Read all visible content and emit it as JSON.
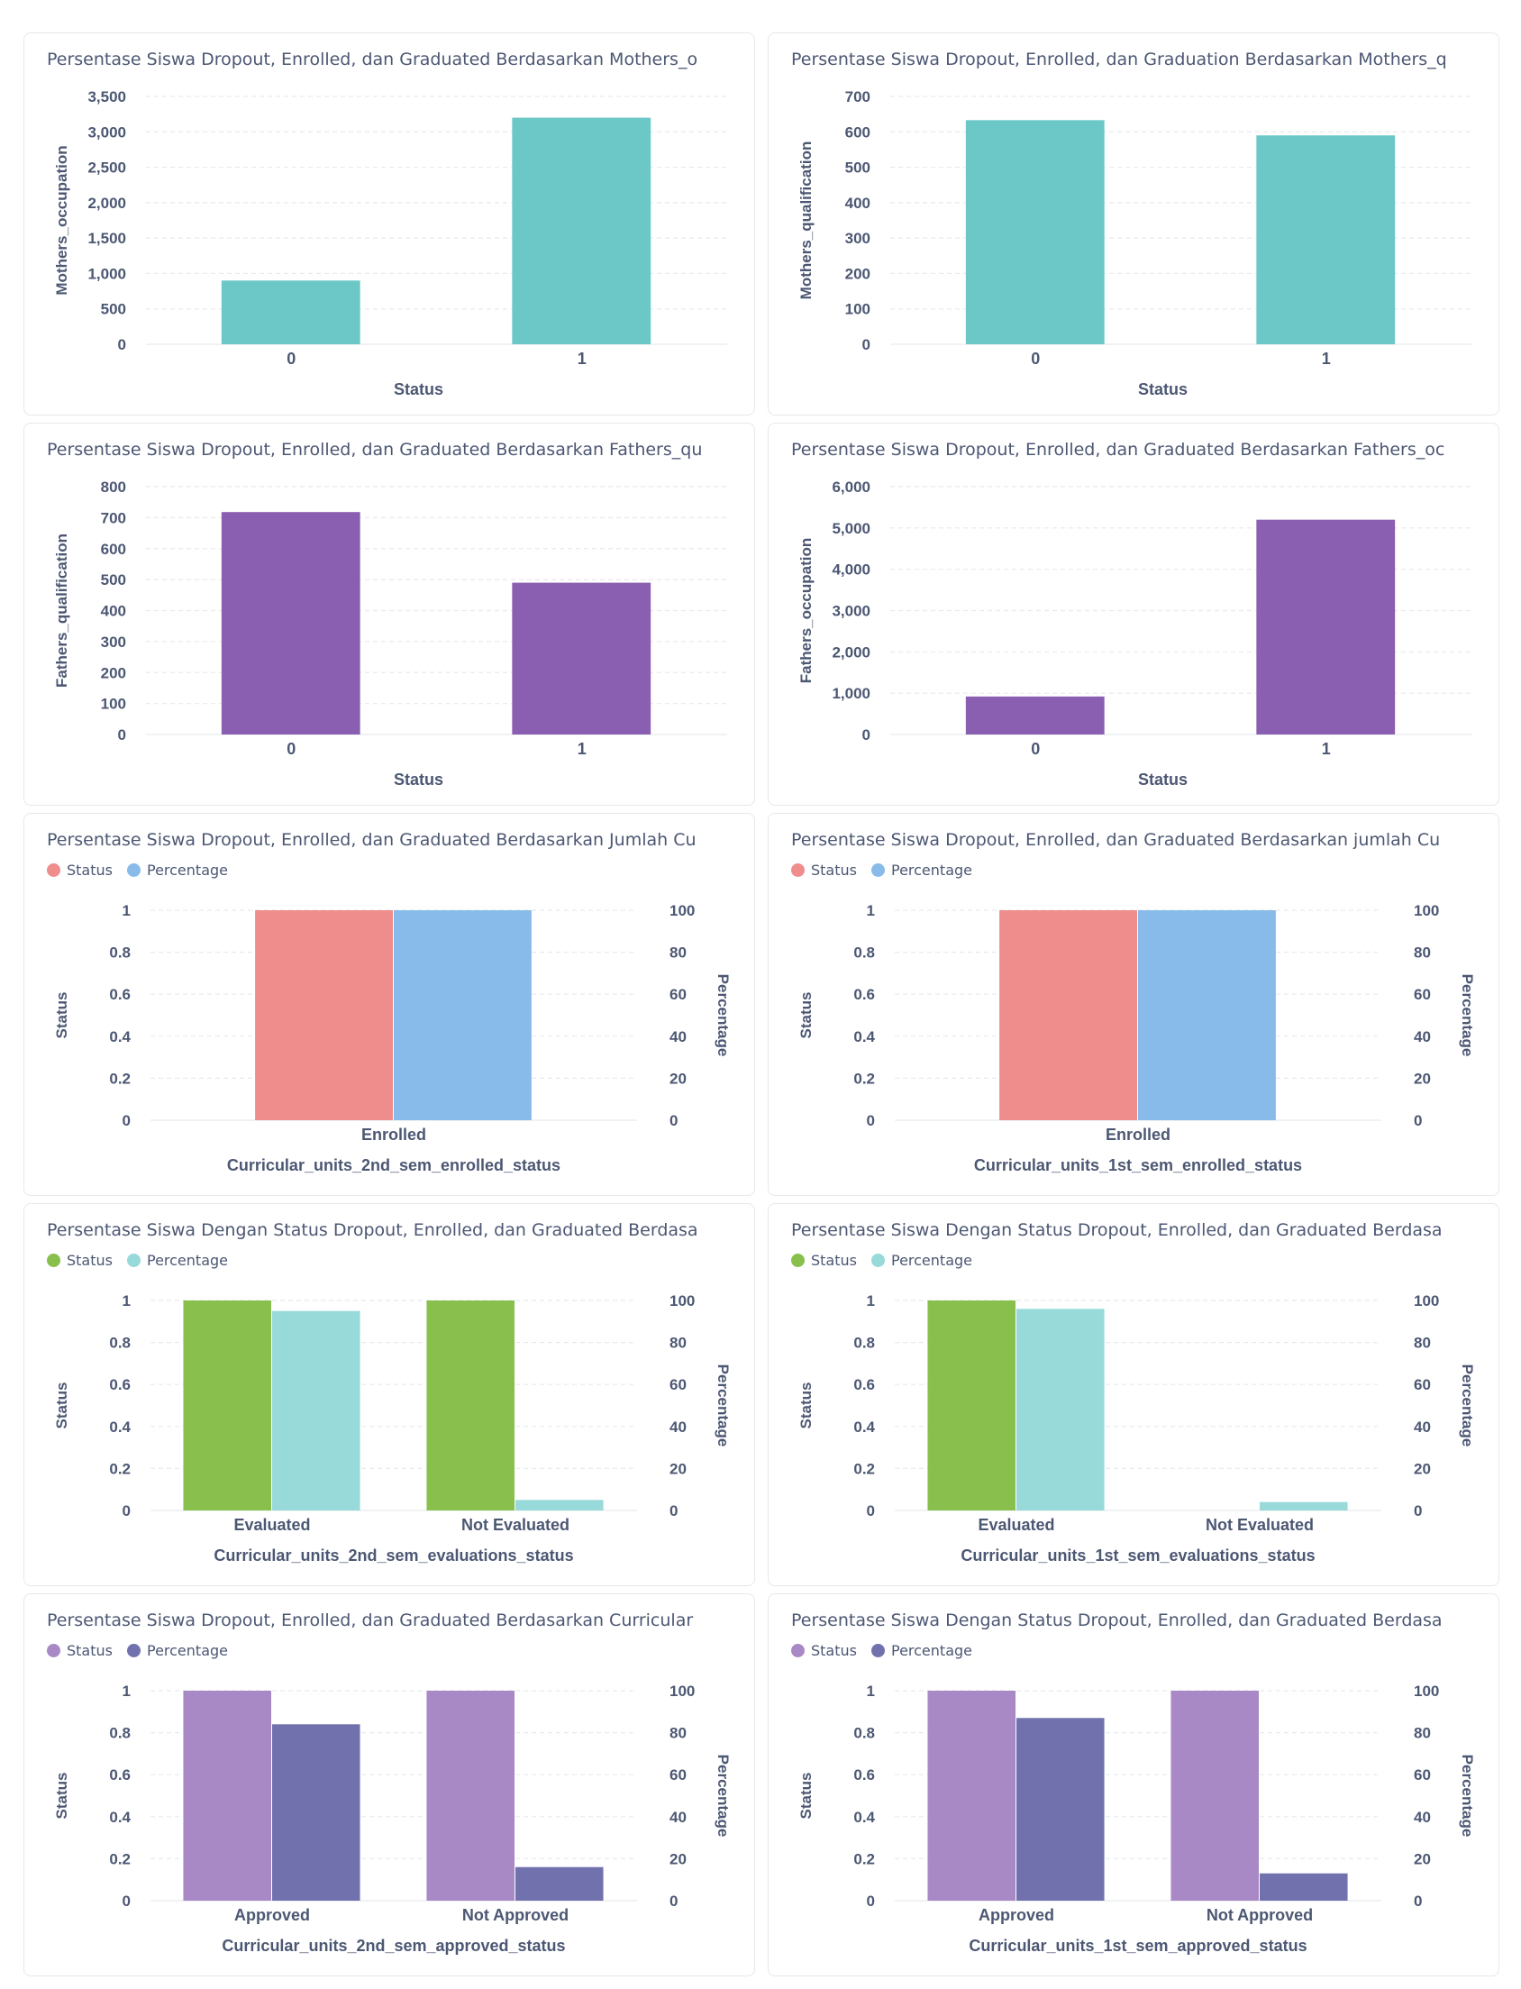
{
  "chart_data": [
    {
      "type": "bar",
      "title": "Persentase Siswa Dropout, Enrolled, dan Graduated Berdasarkan Mothers_o",
      "xlabel": "Status",
      "ylabel": "Mothers_occupation",
      "categories": [
        "0",
        "1"
      ],
      "series": [
        {
          "values": [
            900,
            3200
          ]
        }
      ],
      "colors": [
        "#6cc8c7"
      ],
      "ylim": [
        0,
        3500
      ],
      "yticks": [
        0,
        500,
        1000,
        1500,
        2000,
        2500,
        3000,
        3500
      ],
      "ytick_labels": [
        "0",
        "500",
        "1,000",
        "1,500",
        "2,000",
        "2,500",
        "3,000",
        "3,500"
      ],
      "grid": true
    },
    {
      "type": "bar",
      "title": "Persentase Siswa Dropout, Enrolled, dan Graduation Berdasarkan Mothers_q",
      "xlabel": "Status",
      "ylabel": "Mothers_qualification",
      "categories": [
        "0",
        "1"
      ],
      "series": [
        {
          "values": [
            633,
            590
          ]
        }
      ],
      "colors": [
        "#6cc8c7"
      ],
      "ylim": [
        0,
        700
      ],
      "yticks": [
        0,
        100,
        200,
        300,
        400,
        500,
        600,
        700
      ],
      "ytick_labels": [
        "0",
        "100",
        "200",
        "300",
        "400",
        "500",
        "600",
        "700"
      ],
      "grid": true
    },
    {
      "type": "bar",
      "title": "Persentase Siswa Dropout, Enrolled, dan Graduated Berdasarkan Fathers_qu",
      "xlabel": "Status",
      "ylabel": "Fathers_qualification",
      "categories": [
        "0",
        "1"
      ],
      "series": [
        {
          "values": [
            718,
            490
          ]
        }
      ],
      "colors": [
        "#8a5eb0"
      ],
      "ylim": [
        0,
        800
      ],
      "yticks": [
        0,
        100,
        200,
        300,
        400,
        500,
        600,
        700,
        800
      ],
      "ytick_labels": [
        "0",
        "100",
        "200",
        "300",
        "400",
        "500",
        "600",
        "700",
        "800"
      ],
      "grid": true
    },
    {
      "type": "bar",
      "title": "Persentase Siswa Dropout, Enrolled, dan Graduated Berdasarkan Fathers_oc",
      "xlabel": "Status",
      "ylabel": "Fathers_occupation",
      "categories": [
        "0",
        "1"
      ],
      "series": [
        {
          "values": [
            920,
            5200
          ]
        }
      ],
      "colors": [
        "#8a5eb0"
      ],
      "ylim": [
        0,
        6000
      ],
      "yticks": [
        0,
        1000,
        2000,
        3000,
        4000,
        5000,
        6000
      ],
      "ytick_labels": [
        "0",
        "1,000",
        "2,000",
        "3,000",
        "4,000",
        "5,000",
        "6,000"
      ],
      "grid": true
    },
    {
      "type": "bar",
      "title": "Persentase Siswa Dropout, Enrolled, dan Graduated Berdasarkan Jumlah Cu",
      "xlabel": "Curricular_units_2nd_sem_enrolled_status",
      "ylabel": "Status",
      "y2label": "Percentage",
      "categories": [
        "Enrolled"
      ],
      "series": [
        {
          "name": "Status",
          "values": [
            1
          ],
          "axis": "left"
        },
        {
          "name": "Percentage",
          "values": [
            100
          ],
          "axis": "right"
        }
      ],
      "colors": [
        "#ef8c8c",
        "#88bbea"
      ],
      "ylim": [
        0,
        1
      ],
      "y2lim": [
        0,
        100
      ],
      "yticks": [
        0,
        0.2,
        0.4,
        0.6,
        0.8,
        1
      ],
      "ytick_labels": [
        "0",
        "0.2",
        "0.4",
        "0.6",
        "0.8",
        "1"
      ],
      "y2ticks": [
        0,
        20,
        40,
        60,
        80,
        100
      ],
      "y2tick_labels": [
        "0",
        "20",
        "40",
        "60",
        "80",
        "100"
      ],
      "legend": "top-left",
      "grid": true
    },
    {
      "type": "bar",
      "title": "Persentase Siswa Dropout, Enrolled, dan Graduated Berdasarkan jumlah Cu",
      "xlabel": "Curricular_units_1st_sem_enrolled_status",
      "ylabel": "Status",
      "y2label": "Percentage",
      "categories": [
        "Enrolled"
      ],
      "series": [
        {
          "name": "Status",
          "values": [
            1
          ],
          "axis": "left"
        },
        {
          "name": "Percentage",
          "values": [
            100
          ],
          "axis": "right"
        }
      ],
      "colors": [
        "#ef8c8c",
        "#88bbea"
      ],
      "ylim": [
        0,
        1
      ],
      "y2lim": [
        0,
        100
      ],
      "yticks": [
        0,
        0.2,
        0.4,
        0.6,
        0.8,
        1
      ],
      "ytick_labels": [
        "0",
        "0.2",
        "0.4",
        "0.6",
        "0.8",
        "1"
      ],
      "y2ticks": [
        0,
        20,
        40,
        60,
        80,
        100
      ],
      "y2tick_labels": [
        "0",
        "20",
        "40",
        "60",
        "80",
        "100"
      ],
      "legend": "top-left",
      "grid": true
    },
    {
      "type": "bar",
      "title": "Persentase Siswa Dengan Status Dropout, Enrolled, dan Graduated Berdasa",
      "xlabel": "Curricular_units_2nd_sem_evaluations_status",
      "ylabel": "Status",
      "y2label": "Percentage",
      "categories": [
        "Evaluated",
        "Not Evaluated"
      ],
      "series": [
        {
          "name": "Status",
          "values": [
            1,
            1
          ],
          "axis": "left"
        },
        {
          "name": "Percentage",
          "values": [
            95,
            5
          ],
          "axis": "right"
        }
      ],
      "colors": [
        "#88bf4d",
        "#98d9d9"
      ],
      "ylim": [
        0,
        1
      ],
      "y2lim": [
        0,
        100
      ],
      "yticks": [
        0,
        0.2,
        0.4,
        0.6,
        0.8,
        1
      ],
      "ytick_labels": [
        "0",
        "0.2",
        "0.4",
        "0.6",
        "0.8",
        "1"
      ],
      "y2ticks": [
        0,
        20,
        40,
        60,
        80,
        100
      ],
      "y2tick_labels": [
        "0",
        "20",
        "40",
        "60",
        "80",
        "100"
      ],
      "legend": "top-left",
      "grid": true
    },
    {
      "type": "bar",
      "title": "Persentase Siswa Dengan Status Dropout, Enrolled, dan Graduated Berdasa",
      "xlabel": "Curricular_units_1st_sem_evaluations_status",
      "ylabel": "Status",
      "y2label": "Percentage",
      "categories": [
        "Evaluated",
        "Not Evaluated"
      ],
      "series": [
        {
          "name": "Status",
          "values": [
            1,
            0
          ],
          "axis": "left"
        },
        {
          "name": "Percentage",
          "values": [
            96,
            4
          ],
          "axis": "right"
        }
      ],
      "colors": [
        "#88bf4d",
        "#98d9d9"
      ],
      "ylim": [
        0,
        1
      ],
      "y2lim": [
        0,
        100
      ],
      "yticks": [
        0,
        0.2,
        0.4,
        0.6,
        0.8,
        1
      ],
      "ytick_labels": [
        "0",
        "0.2",
        "0.4",
        "0.6",
        "0.8",
        "1"
      ],
      "y2ticks": [
        0,
        20,
        40,
        60,
        80,
        100
      ],
      "y2tick_labels": [
        "0",
        "20",
        "40",
        "60",
        "80",
        "100"
      ],
      "legend": "top-left",
      "grid": true
    },
    {
      "type": "bar",
      "title": "Persentase Siswa Dropout, Enrolled, dan Graduated Berdasarkan Curricular",
      "xlabel": "Curricular_units_2nd_sem_approved_status",
      "ylabel": "Status",
      "y2label": "Percentage",
      "categories": [
        "Approved",
        "Not Approved"
      ],
      "series": [
        {
          "name": "Status",
          "values": [
            1,
            1
          ],
          "axis": "left"
        },
        {
          "name": "Percentage",
          "values": [
            84,
            16
          ],
          "axis": "right"
        }
      ],
      "colors": [
        "#a989c5",
        "#7172ad"
      ],
      "ylim": [
        0,
        1
      ],
      "y2lim": [
        0,
        100
      ],
      "yticks": [
        0,
        0.2,
        0.4,
        0.6,
        0.8,
        1
      ],
      "ytick_labels": [
        "0",
        "0.2",
        "0.4",
        "0.6",
        "0.8",
        "1"
      ],
      "y2ticks": [
        0,
        20,
        40,
        60,
        80,
        100
      ],
      "y2tick_labels": [
        "0",
        "20",
        "40",
        "60",
        "80",
        "100"
      ],
      "legend": "top-left",
      "grid": true
    },
    {
      "type": "bar",
      "title": "Persentase Siswa Dengan Status Dropout, Enrolled, dan Graduated Berdasa",
      "xlabel": "Curricular_units_1st_sem_approved_status",
      "ylabel": "Status",
      "y2label": "Percentage",
      "categories": [
        "Approved",
        "Not Approved"
      ],
      "series": [
        {
          "name": "Status",
          "values": [
            1,
            1
          ],
          "axis": "left"
        },
        {
          "name": "Percentage",
          "values": [
            87,
            13
          ],
          "axis": "right"
        }
      ],
      "colors": [
        "#a989c5",
        "#7172ad"
      ],
      "ylim": [
        0,
        1
      ],
      "y2lim": [
        0,
        100
      ],
      "yticks": [
        0,
        0.2,
        0.4,
        0.6,
        0.8,
        1
      ],
      "ytick_labels": [
        "0",
        "0.2",
        "0.4",
        "0.6",
        "0.8",
        "1"
      ],
      "y2ticks": [
        0,
        20,
        40,
        60,
        80,
        100
      ],
      "y2tick_labels": [
        "0",
        "20",
        "40",
        "60",
        "80",
        "100"
      ],
      "legend": "top-left",
      "grid": true
    }
  ]
}
